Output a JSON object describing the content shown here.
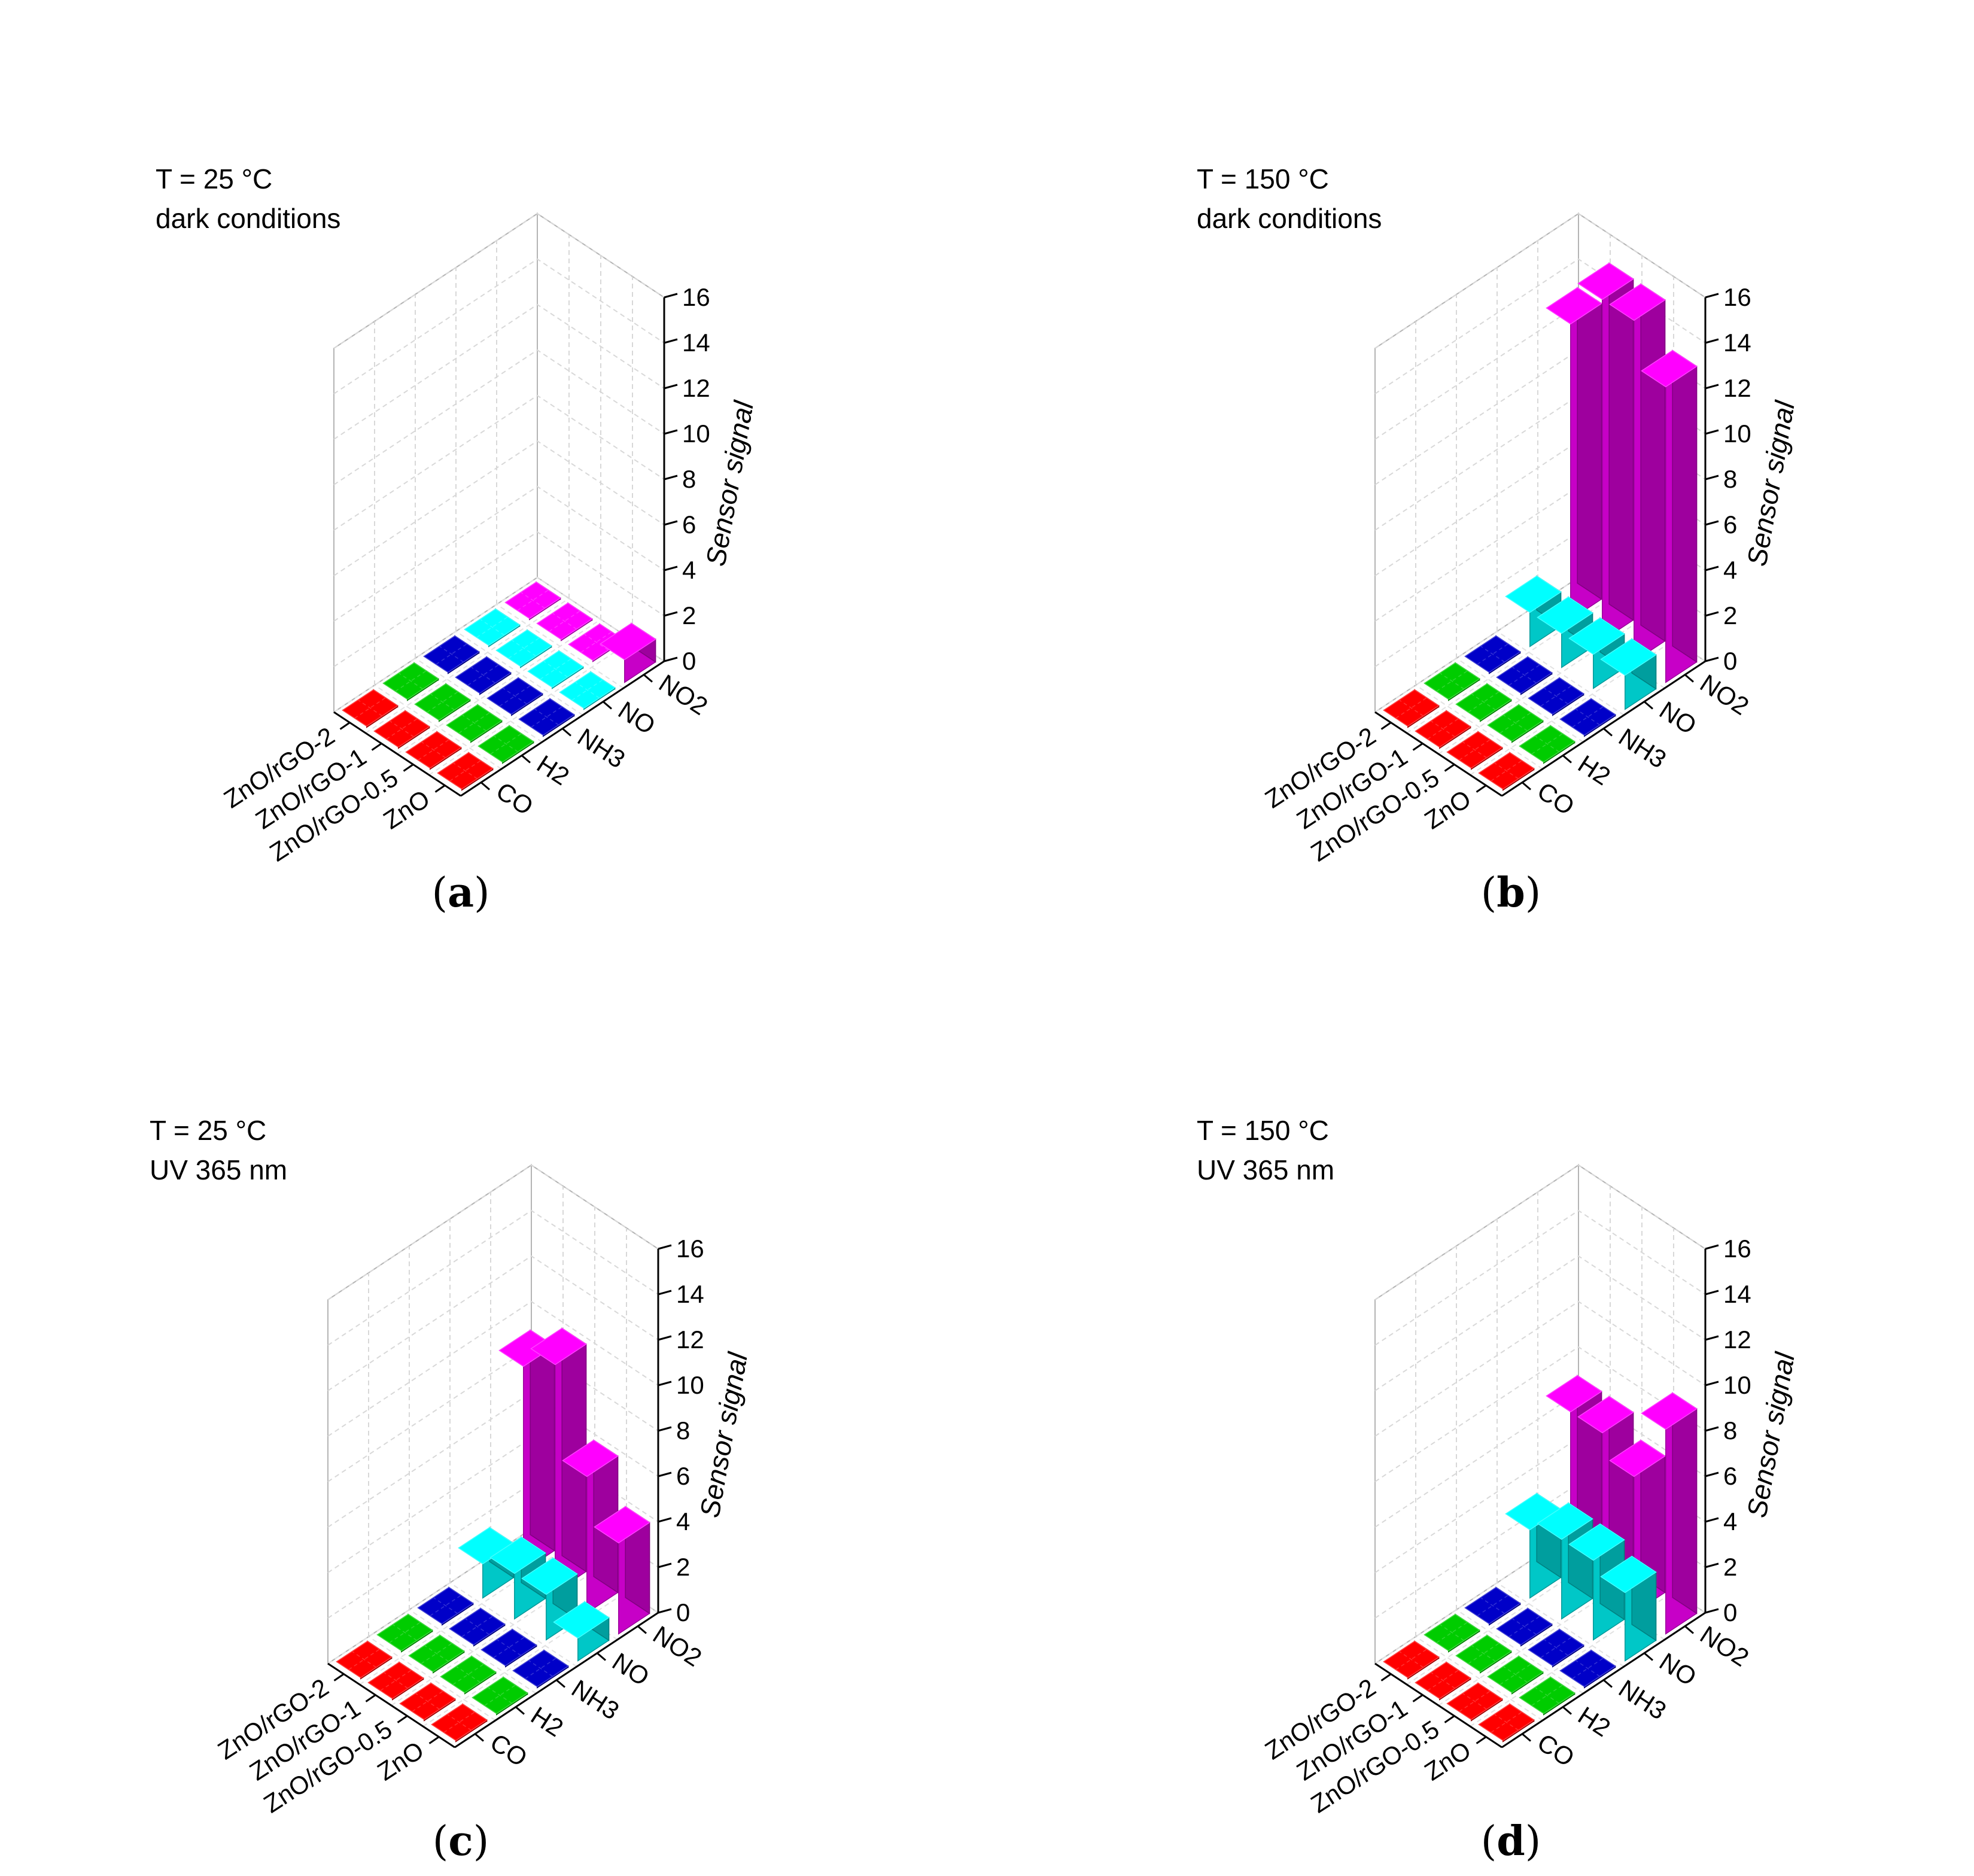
{
  "figure": {
    "colors": {
      "CO": "#ff0000",
      "H2": "#00cc00",
      "NH3": "#0000c8",
      "NO": "#00ffff",
      "NO2": "#ff00ff"
    }
  },
  "chart_data": [
    {
      "type": "bar3d",
      "panel_label": "a",
      "annotation": [
        "T = 25 °C",
        "dark conditions"
      ],
      "zlabel": "Sensor signal",
      "zlim": [
        0,
        16
      ],
      "zticks": [
        "0",
        "2",
        "4",
        "6",
        "8",
        "10",
        "12",
        "14",
        "16"
      ],
      "materials": [
        "ZnO",
        "ZnO/rGO-0.5",
        "ZnO/rGO-1",
        "ZnO/rGO-2"
      ],
      "gases": [
        "CO",
        "H2",
        "NH3",
        "NO",
        "NO2"
      ],
      "series": [
        {
          "name": "CO",
          "values": [
            0,
            0,
            0,
            0
          ]
        },
        {
          "name": "H2",
          "values": [
            0,
            0,
            0,
            0
          ]
        },
        {
          "name": "NH3",
          "values": [
            0,
            0,
            0,
            0
          ]
        },
        {
          "name": "NO",
          "values": [
            0,
            0,
            0,
            0
          ]
        },
        {
          "name": "NO2",
          "values": [
            1,
            0,
            0,
            0
          ]
        }
      ]
    },
    {
      "type": "bar3d",
      "panel_label": "b",
      "annotation": [
        "T = 150 °C",
        "dark conditions"
      ],
      "zlabel": "Sensor signal",
      "zlim": [
        0,
        16
      ],
      "zticks": [
        "0",
        "2",
        "4",
        "6",
        "8",
        "10",
        "12",
        "14",
        "16"
      ],
      "materials": [
        "ZnO",
        "ZnO/rGO-0.5",
        "ZnO/rGO-1",
        "ZnO/rGO-2"
      ],
      "gases": [
        "CO",
        "H2",
        "NH3",
        "NO",
        "NO2"
      ],
      "series": [
        {
          "name": "CO",
          "values": [
            0,
            0,
            0,
            0
          ]
        },
        {
          "name": "H2",
          "values": [
            0,
            0,
            0,
            0
          ]
        },
        {
          "name": "NH3",
          "values": [
            0,
            0,
            0,
            0
          ]
        },
        {
          "name": "NO",
          "values": [
            1.5,
            1.5,
            1.5,
            1.5
          ]
        },
        {
          "name": "NO2",
          "values": [
            13,
            15,
            15,
            13
          ]
        }
      ]
    },
    {
      "type": "bar3d",
      "panel_label": "c",
      "annotation": [
        "T = 25 °C",
        "UV 365 nm"
      ],
      "zlabel": "Sensor signal",
      "zlim": [
        0,
        16
      ],
      "zticks": [
        "0",
        "2",
        "4",
        "6",
        "8",
        "10",
        "12",
        "14",
        "16"
      ],
      "materials": [
        "ZnO",
        "ZnO/rGO-0.5",
        "ZnO/rGO-1",
        "ZnO/rGO-2"
      ],
      "gases": [
        "CO",
        "H2",
        "NH3",
        "NO",
        "NO2"
      ],
      "series": [
        {
          "name": "CO",
          "values": [
            0,
            0,
            0,
            0
          ]
        },
        {
          "name": "H2",
          "values": [
            0,
            0,
            0,
            0
          ]
        },
        {
          "name": "NH3",
          "values": [
            0,
            0,
            0,
            0
          ]
        },
        {
          "name": "NO",
          "values": [
            1,
            2,
            2,
            1.5
          ]
        },
        {
          "name": "NO2",
          "values": [
            4,
            6,
            10,
            9
          ]
        }
      ]
    },
    {
      "type": "bar3d",
      "panel_label": "d",
      "annotation": [
        "T = 150 °C",
        "UV 365 nm"
      ],
      "zlabel": "Sensor signal",
      "zlim": [
        0,
        16
      ],
      "zticks": [
        "0",
        "2",
        "4",
        "6",
        "8",
        "10",
        "12",
        "14",
        "16"
      ],
      "materials": [
        "ZnO",
        "ZnO/rGO-0.5",
        "ZnO/rGO-1",
        "ZnO/rGO-2"
      ],
      "gases": [
        "CO",
        "H2",
        "NH3",
        "NO",
        "NO2"
      ],
      "series": [
        {
          "name": "CO",
          "values": [
            0,
            0,
            0,
            0
          ]
        },
        {
          "name": "H2",
          "values": [
            0,
            0,
            0,
            0
          ]
        },
        {
          "name": "NH3",
          "values": [
            0,
            0,
            0,
            0
          ]
        },
        {
          "name": "NO",
          "values": [
            3,
            3.5,
            3.5,
            3
          ]
        },
        {
          "name": "NO2",
          "values": [
            9,
            6,
            7,
            7
          ]
        }
      ]
    }
  ]
}
